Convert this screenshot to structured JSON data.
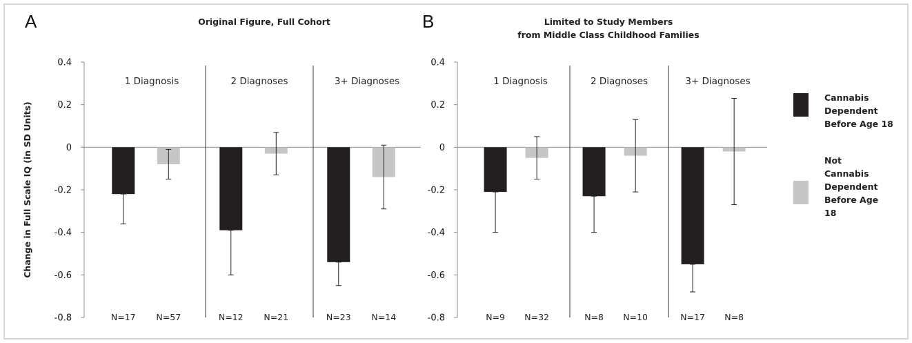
{
  "colors": {
    "cannabis": "#231f20",
    "not_cannabis": "#c6c6c6",
    "axis": "#8c8c8c",
    "frame": "#b0b0b0"
  },
  "y_axis_label": "Change in Full Scale IQ (in SD Units)",
  "legend": {
    "cannabis": [
      "Cannabis",
      "Dependent",
      "Before Age 18"
    ],
    "not_cannabis": [
      "Not",
      "Cannabis",
      "Dependent",
      "Before Age",
      "18"
    ]
  },
  "chart_data": [
    {
      "type": "bar",
      "panel": "A",
      "title": [
        "Original Figure, Full Cohort"
      ],
      "ylim": [
        -0.8,
        0.4
      ],
      "yticks": [
        "0.4",
        "0.2",
        "0",
        "-0.2",
        "-0.4",
        "-0.6",
        "-0.8"
      ],
      "groups": [
        "1 Diagnosis",
        "2 Diagnoses",
        "3+ Diagnoses"
      ],
      "series": [
        {
          "name": "Cannabis Dependent Before Age 18",
          "values": [
            -0.22,
            -0.39,
            -0.54
          ],
          "err_low": [
            -0.36,
            -0.6,
            -0.65
          ],
          "err_high": [
            -0.22,
            -0.39,
            -0.54
          ],
          "n": [
            "N=17",
            "N=12",
            "N=23"
          ]
        },
        {
          "name": "Not Cannabis Dependent Before Age 18",
          "values": [
            -0.08,
            -0.03,
            -0.14
          ],
          "err_low": [
            -0.15,
            -0.13,
            -0.29
          ],
          "err_high": [
            -0.01,
            0.07,
            0.01
          ],
          "n": [
            "N=57",
            "N=21",
            "N=14"
          ]
        }
      ]
    },
    {
      "type": "bar",
      "panel": "B",
      "title": [
        "Limited to Study Members",
        "from Middle Class Childhood Families"
      ],
      "ylim": [
        -0.8,
        0.4
      ],
      "yticks": [
        "0.4",
        "0.2",
        "0",
        "-0.2",
        "-0.4",
        "-0.6",
        "-0.8"
      ],
      "groups": [
        "1 Diagnosis",
        "2 Diagnoses",
        "3+ Diagnoses"
      ],
      "series": [
        {
          "name": "Cannabis Dependent Before Age 18",
          "values": [
            -0.21,
            -0.23,
            -0.55
          ],
          "err_low": [
            -0.4,
            -0.4,
            -0.68
          ],
          "err_high": [
            -0.21,
            -0.23,
            -0.55
          ],
          "n": [
            "N=9",
            "N=8",
            "N=17"
          ]
        },
        {
          "name": "Not Cannabis Dependent Before Age 18",
          "values": [
            -0.05,
            -0.04,
            -0.02
          ],
          "err_low": [
            -0.15,
            -0.21,
            -0.27
          ],
          "err_high": [
            0.05,
            0.13,
            0.23
          ],
          "n": [
            "N=32",
            "N=10",
            "N=8"
          ]
        }
      ]
    }
  ]
}
